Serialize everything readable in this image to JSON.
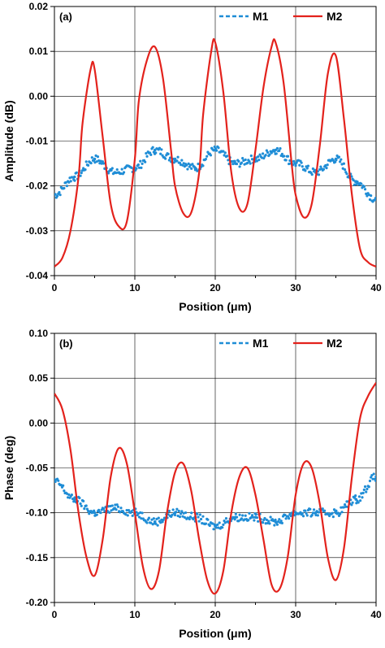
{
  "chart_data": [
    {
      "type": "line",
      "panel_label": "(a)",
      "xlabel": "Position (μm)",
      "ylabel": "Amplitude (dB)",
      "xlim": [
        0,
        40
      ],
      "ylim": [
        -0.04,
        0.02
      ],
      "xticks": [
        0,
        10,
        20,
        30,
        40
      ],
      "yticks": [
        -0.04,
        -0.03,
        -0.02,
        -0.01,
        0.0,
        0.01,
        0.02
      ],
      "ytick_labels": [
        "-0.04",
        "-0.03",
        "-0.02",
        "-0.01",
        "0.00",
        "0.01",
        "0.02"
      ],
      "xtick_labels": [
        "0",
        "10",
        "20",
        "30",
        "40"
      ],
      "grid": true,
      "legend_position": "top-right",
      "series": [
        {
          "name": "M1",
          "style": "dashed-points",
          "color": "#1f8dd6",
          "x": [
            0,
            2.5,
            5,
            7.5,
            10,
            12.5,
            15,
            17.5,
            20,
            22.5,
            25,
            27.5,
            30,
            32.5,
            35,
            37.5,
            40
          ],
          "y": [
            -0.022,
            -0.018,
            -0.014,
            -0.017,
            -0.016,
            -0.012,
            -0.014,
            -0.016,
            -0.012,
            -0.015,
            -0.014,
            -0.012,
            -0.015,
            -0.017,
            -0.014,
            -0.019,
            -0.023
          ]
        },
        {
          "name": "M2",
          "style": "solid",
          "color": "#e3221c",
          "x": [
            0,
            1,
            2,
            3,
            3.5,
            4.5,
            5,
            6,
            7,
            8,
            9,
            10,
            10.5,
            11.5,
            12.5,
            13.5,
            14.5,
            15,
            16,
            17,
            18,
            18.5,
            19.5,
            20,
            21,
            22,
            23,
            24,
            25,
            26,
            27,
            27.5,
            28.5,
            29.5,
            30,
            31,
            32,
            33,
            34,
            35,
            36,
            37,
            38,
            39,
            40
          ],
          "y": [
            -0.038,
            -0.036,
            -0.03,
            -0.018,
            -0.006,
            0.006,
            0.006,
            -0.009,
            -0.024,
            -0.029,
            -0.028,
            -0.014,
            -0.001,
            0.008,
            0.011,
            0.004,
            -0.012,
            -0.02,
            -0.026,
            -0.026,
            -0.017,
            -0.004,
            0.01,
            0.012,
            0.001,
            -0.017,
            -0.025,
            -0.024,
            -0.012,
            0.002,
            0.011,
            0.012,
            0.003,
            -0.015,
            -0.022,
            -0.027,
            -0.024,
            -0.011,
            0.005,
            0.009,
            -0.005,
            -0.022,
            -0.034,
            -0.037,
            -0.038
          ]
        }
      ]
    },
    {
      "type": "line",
      "panel_label": "(b)",
      "xlabel": "Position (μm)",
      "ylabel": "Phase (deg)",
      "xlim": [
        0,
        40
      ],
      "ylim": [
        -0.2,
        0.1
      ],
      "xticks": [
        0,
        10,
        20,
        30,
        40
      ],
      "yticks": [
        -0.2,
        -0.15,
        -0.1,
        -0.05,
        0.0,
        0.05,
        0.1
      ],
      "ytick_labels": [
        "-0.20",
        "-0.15",
        "-0.10",
        "-0.05",
        "0.00",
        "0.05",
        "0.10"
      ],
      "xtick_labels": [
        "0",
        "10",
        "20",
        "30",
        "40"
      ],
      "grid": true,
      "legend_position": "top-right",
      "series": [
        {
          "name": "M1",
          "style": "dashed-points",
          "color": "#1f8dd6",
          "x": [
            0,
            2.5,
            5,
            7.5,
            10,
            12.5,
            15,
            17.5,
            20,
            22.5,
            25,
            27.5,
            30,
            32.5,
            35,
            37.5,
            40
          ],
          "y": [
            -0.065,
            -0.085,
            -0.1,
            -0.095,
            -0.1,
            -0.11,
            -0.1,
            -0.105,
            -0.115,
            -0.105,
            -0.105,
            -0.11,
            -0.1,
            -0.1,
            -0.1,
            -0.085,
            -0.06
          ]
        },
        {
          "name": "M2",
          "style": "solid",
          "color": "#e3221c",
          "x": [
            0,
            1,
            2,
            3,
            4,
            5,
            6,
            7,
            8,
            9,
            10,
            11,
            12,
            13,
            14,
            15,
            16,
            17,
            18,
            19,
            20,
            21,
            22,
            23,
            24,
            25,
            26,
            27,
            28,
            29,
            30,
            31,
            32,
            33,
            34,
            35,
            36,
            37,
            38,
            39,
            40
          ],
          "y": [
            0.033,
            0.015,
            -0.03,
            -0.1,
            -0.15,
            -0.17,
            -0.13,
            -0.06,
            -0.028,
            -0.045,
            -0.1,
            -0.16,
            -0.185,
            -0.165,
            -0.1,
            -0.055,
            -0.045,
            -0.075,
            -0.13,
            -0.175,
            -0.19,
            -0.165,
            -0.1,
            -0.06,
            -0.05,
            -0.08,
            -0.13,
            -0.18,
            -0.185,
            -0.15,
            -0.08,
            -0.045,
            -0.05,
            -0.09,
            -0.15,
            -0.175,
            -0.14,
            -0.06,
            0.005,
            0.03,
            0.045
          ]
        }
      ]
    }
  ]
}
